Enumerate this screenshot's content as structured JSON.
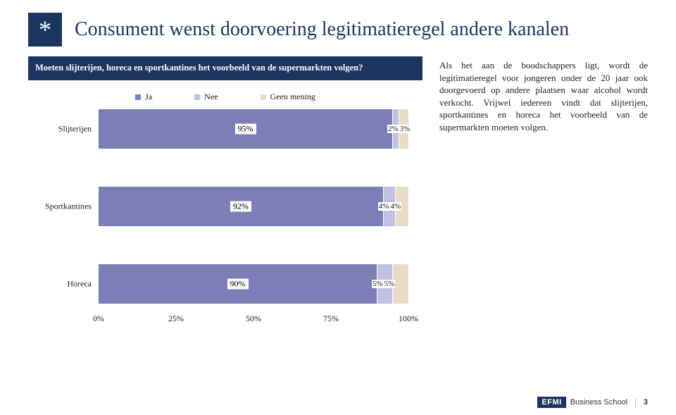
{
  "title": "Consument wenst doorvoering legitimatieregel andere kanalen",
  "asterisk": "*",
  "question": "Moeten slijterijen, horeca en sportkantines het voorbeeld van de supermarkten volgen?",
  "commentary": "Als het aan de boodschappers ligt, wordt de legitimatieregel voor jongeren onder de 20 jaar ook doorgevoerd op andere plaatsen waar alcohol wordt verkocht. Vrijwel iedereen vindt dat slijterijen, sportkantines en horeca het voorbeeld van de supermarkten moeten volgen.",
  "chart": {
    "type": "stacked-bar-horizontal",
    "legend": [
      {
        "label": "Ja",
        "color": "#7b7fb5"
      },
      {
        "label": "Nee",
        "color": "#bfc2e0"
      },
      {
        "label": "Geen mening",
        "color": "#e9dcc6"
      }
    ],
    "series_colors": [
      "#7b7fb5",
      "#bfc2e0",
      "#e9dcc6"
    ],
    "categories": [
      {
        "name": "Slijterijen",
        "values": [
          95,
          2,
          3
        ],
        "labels": [
          "95%",
          "2%",
          "3%"
        ]
      },
      {
        "name": "Sportkantines",
        "values": [
          92,
          4,
          4
        ],
        "labels": [
          "92%",
          "4%",
          "4%"
        ]
      },
      {
        "name": "Horeca",
        "values": [
          90,
          5,
          5
        ],
        "labels": [
          "90%",
          "5%",
          "5%"
        ]
      }
    ],
    "x_ticks": [
      {
        "pos": 0,
        "label": "0%"
      },
      {
        "pos": 25,
        "label": "25%"
      },
      {
        "pos": 50,
        "label": "50%"
      },
      {
        "pos": 75,
        "label": "75%"
      },
      {
        "pos": 100,
        "label": "100%"
      }
    ],
    "xlim": [
      0,
      100
    ],
    "value_label_bg": "#ffffff",
    "value_label_color": "#000000",
    "category_fontsize": 12,
    "legend_fontsize": 12
  },
  "footer": {
    "logo_text": "EFMI",
    "school_text": "Business School",
    "page_number": "3"
  }
}
